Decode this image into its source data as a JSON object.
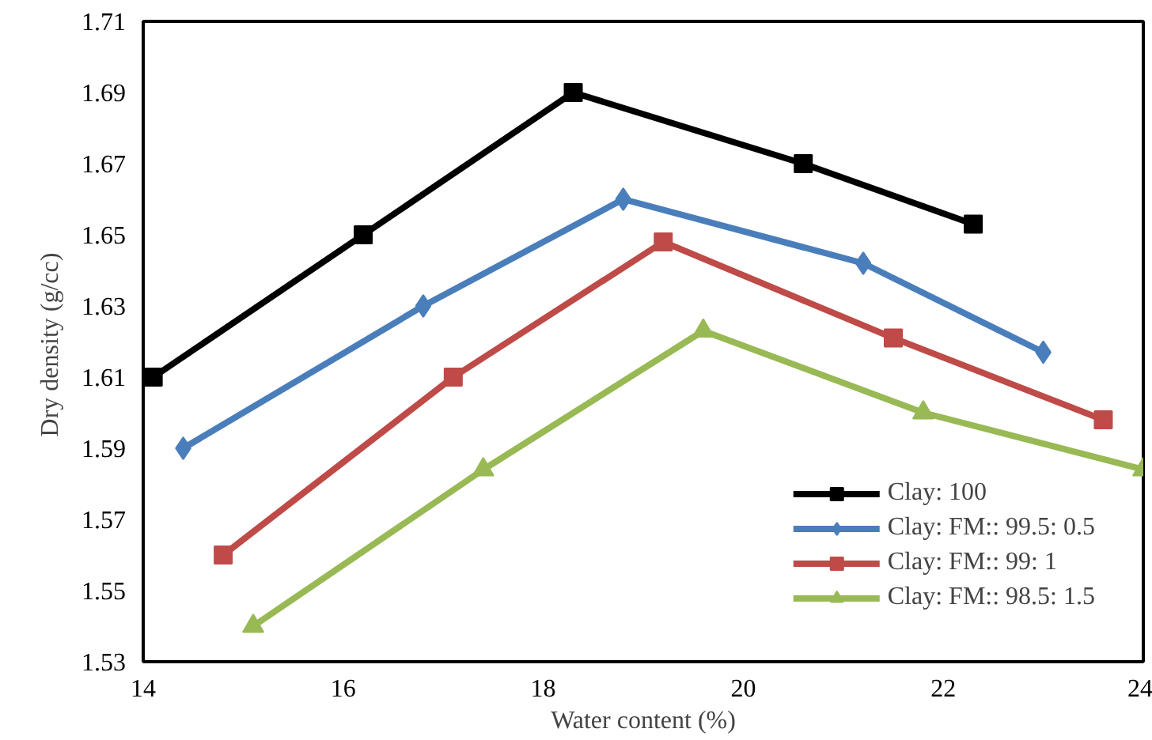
{
  "chart_data": {
    "type": "line",
    "xlabel": "Water content (%)",
    "ylabel": "Dry density  (g/cc)",
    "xlim": [
      14,
      24
    ],
    "xticks": [
      14,
      16,
      18,
      20,
      22,
      24
    ],
    "ylim": [
      1.53,
      1.71
    ],
    "yticks": [
      1.53,
      1.55,
      1.57,
      1.59,
      1.61,
      1.63,
      1.65,
      1.67,
      1.69,
      1.71
    ],
    "grid": false,
    "legend": "bottom right",
    "line_style": "solid",
    "series": [
      {
        "name": "Clay: 100",
        "color": "#000000",
        "marker": "square",
        "x": [
          14.1,
          16.2,
          18.3,
          20.6,
          22.3
        ],
        "values": [
          1.61,
          1.65,
          1.69,
          1.67,
          1.653
        ]
      },
      {
        "name": "Clay: FM:: 99.5: 0.5",
        "color": "#4a7ebb",
        "marker": "diamond",
        "x": [
          14.4,
          16.8,
          18.8,
          21.2,
          23.0
        ],
        "values": [
          1.59,
          1.63,
          1.66,
          1.642,
          1.617
        ]
      },
      {
        "name": "Clay: FM:: 99: 1",
        "color": "#be4b48",
        "marker": "square",
        "x": [
          14.8,
          17.1,
          19.2,
          21.5,
          23.6
        ],
        "values": [
          1.56,
          1.61,
          1.648,
          1.621,
          1.598
        ]
      },
      {
        "name": "Clay: FM:: 98.5: 1.5",
        "color": "#98b954",
        "marker": "triangle",
        "x": [
          15.1,
          17.4,
          19.6,
          21.8,
          24.0
        ],
        "values": [
          1.54,
          1.584,
          1.623,
          1.6,
          1.584
        ]
      }
    ]
  }
}
